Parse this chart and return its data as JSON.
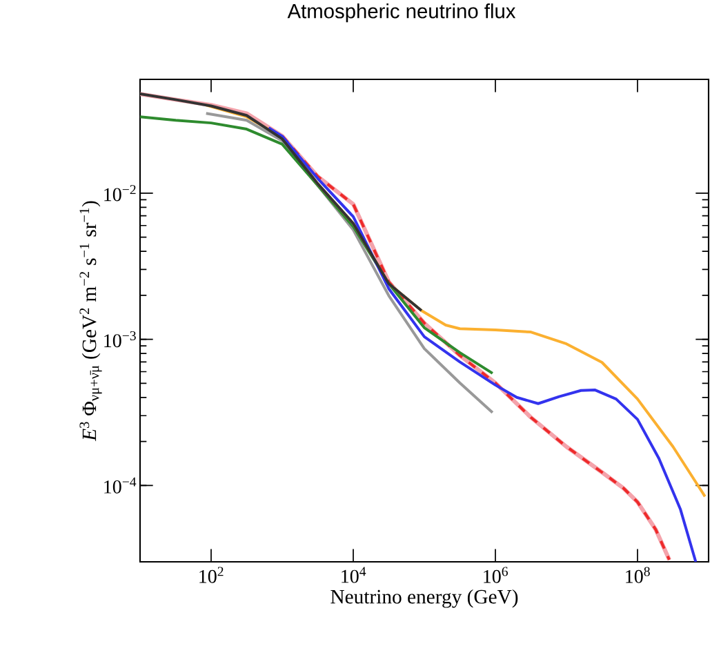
{
  "chart_data": {
    "type": "line",
    "title": "Atmospheric neutrino flux",
    "xlabel": "Neutrino energy (GeV)",
    "ylabel": "*E*$^{3}$ Φ$_{νμ+ν̄μ}$ (GeV$^{2}$ m$^{−2}$ s$^{−1}$ sr$^{−1}$)",
    "log": "xy",
    "xlim": [
      10,
      1000000000
    ],
    "ylim": [
      3e-05,
      0.06
    ],
    "xticks": [
      {
        "value": 100,
        "label": "10$^{2}$"
      },
      {
        "value": 10000,
        "label": "10$^{4}$"
      },
      {
        "value": 1000000,
        "label": "10$^{6}$"
      },
      {
        "value": 100000000,
        "label": "10$^{8}$"
      }
    ],
    "yticks": [
      {
        "value": 0.0001,
        "label": "10$^{−4}$"
      },
      {
        "value": 0.001,
        "label": "10$^{−3}$"
      },
      {
        "value": 0.01,
        "label": "10$^{−2}$"
      }
    ],
    "series": [
      {
        "color": "#f4a3ab",
        "line_style": "solid",
        "x": [
          10,
          31.6,
          100,
          316,
          1000,
          3160,
          10000,
          31600,
          100000,
          316000,
          1000000,
          3160000,
          10000000,
          31600000,
          63000000,
          100000000,
          180000000,
          280000000
        ],
        "values": [
          0.0477,
          0.0436,
          0.04,
          0.0351,
          0.0246,
          0.013,
          0.0084,
          0.00247,
          0.00129,
          0.000775,
          0.000502,
          0.000292,
          0.000184,
          0.000123,
          9.6e-05,
          7.7e-05,
          5e-05,
          3.1e-05
        ]
      },
      {
        "color": "#ee2a2a",
        "line_style": "dashed",
        "x": [
          1000,
          3160,
          10000,
          31600,
          100000,
          316000,
          1000000,
          3160000,
          10000000,
          31600000,
          63000000,
          100000000,
          180000000,
          280000000
        ],
        "values": [
          0.0246,
          0.013,
          0.0084,
          0.00247,
          0.00129,
          0.000775,
          0.000502,
          0.000292,
          0.000184,
          0.000123,
          9.6e-05,
          7.7e-05,
          5e-05,
          3.1e-05
        ]
      },
      {
        "color": "#999999",
        "line_style": "solid",
        "x": [
          85,
          316,
          1000,
          3160,
          10000,
          31600,
          100000,
          316000,
          912000
        ],
        "values": [
          0.0351,
          0.0315,
          0.0228,
          0.0113,
          0.0056,
          0.00199,
          0.000863,
          0.000503,
          0.000315
        ]
      },
      {
        "color": "#2e8b2e",
        "line_style": "solid",
        "x": [
          10,
          31.6,
          100,
          316,
          1000,
          3160,
          10000,
          31600,
          100000,
          316000,
          912000
        ],
        "values": [
          0.0333,
          0.0315,
          0.0302,
          0.0274,
          0.0216,
          0.0113,
          0.0059,
          0.0024,
          0.0012,
          0.00081,
          0.000585
        ]
      },
      {
        "color": "#fbb030",
        "line_style": "solid",
        "x": [
          85,
          316,
          1000,
          3160,
          10000,
          31600,
          91200,
          200000,
          316000,
          1000000,
          3160000,
          10000000,
          31600000,
          100000000,
          316000000,
          890000000
        ],
        "values": [
          0.04,
          0.0333,
          0.0241,
          0.0116,
          0.0062,
          0.0024,
          0.00157,
          0.00125,
          0.00118,
          0.00116,
          0.00112,
          0.00093,
          0.000695,
          0.00039,
          0.000184,
          8.4e-05
        ]
      },
      {
        "color": "#3333ee",
        "line_style": "solid",
        "x": [
          646,
          1000,
          3160,
          10000,
          31600,
          100000,
          316000,
          1000000,
          2000000,
          4000000,
          7900000,
          16000000,
          25000000,
          50000000,
          100000000,
          200000000,
          400000000,
          660000000
        ],
        "values": [
          0.028,
          0.0245,
          0.0126,
          0.0069,
          0.00222,
          0.00104,
          0.0007,
          0.000486,
          0.0004,
          0.000363,
          0.000405,
          0.000446,
          0.00045,
          0.00039,
          0.000283,
          0.000153,
          6.9e-05,
          3e-05
        ]
      },
      {
        "color": "#333333",
        "line_style": "solid",
        "x": [
          10,
          31.6,
          100,
          316,
          1000,
          3160,
          10000,
          31600,
          91200
        ],
        "values": [
          0.0477,
          0.0436,
          0.0395,
          0.034,
          0.0235,
          0.0116,
          0.0062,
          0.0024,
          0.00157
        ]
      }
    ]
  }
}
